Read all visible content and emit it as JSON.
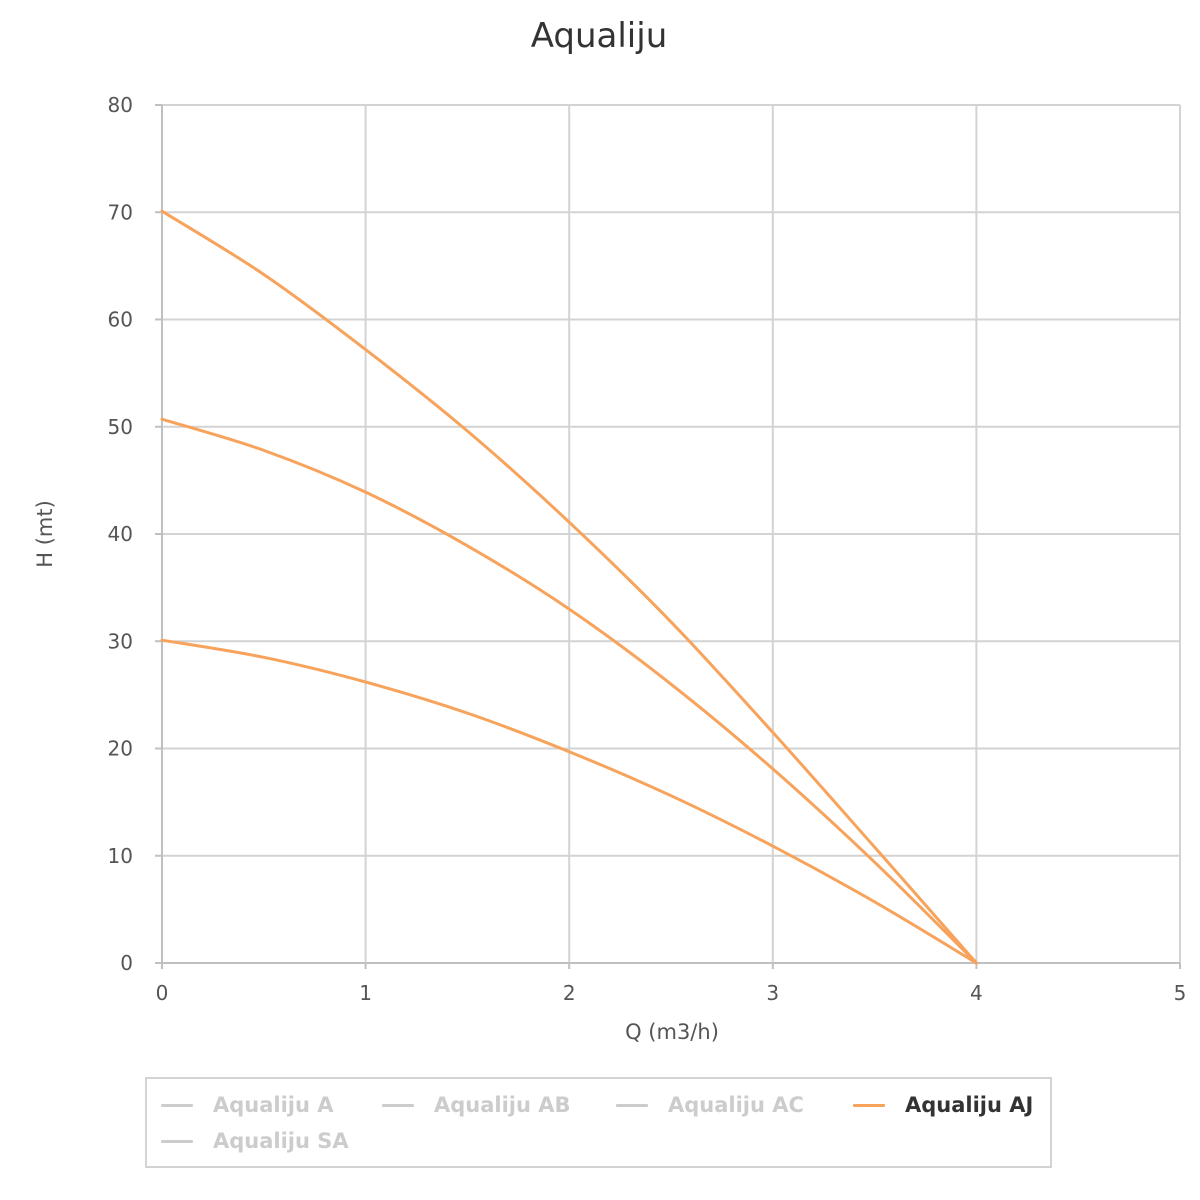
{
  "chart_data": {
    "type": "line",
    "title": "Aqualiju",
    "xlabel": "Q (m3/h)",
    "ylabel": "H (mt)",
    "xlim": [
      0,
      5
    ],
    "ylim": [
      0,
      80
    ],
    "x_ticks": [
      "0",
      "1",
      "2",
      "3",
      "4",
      "5"
    ],
    "y_ticks": [
      "0",
      "10",
      "20",
      "30",
      "40",
      "50",
      "60",
      "70",
      "80"
    ],
    "grid": true,
    "legend_position": "bottom",
    "series": [
      {
        "name": "Aqualiju AJ",
        "color": "#f7a35c",
        "x": [
          0,
          0.5,
          1,
          1.5,
          2,
          2.5,
          3,
          3.5,
          4
        ],
        "y": [
          70.1,
          64.2,
          57.2,
          49.6,
          41.1,
          31.8,
          21.5,
          10.8,
          0
        ]
      },
      {
        "name": "Aqualiju AJ",
        "color": "#f7a35c",
        "x": [
          0,
          0.5,
          1,
          1.5,
          2,
          2.5,
          3,
          3.5,
          4
        ],
        "y": [
          50.7,
          47.8,
          43.9,
          38.9,
          33.0,
          26.0,
          18.1,
          9.4,
          0
        ]
      },
      {
        "name": "Aqualiju AJ",
        "color": "#f7a35c",
        "x": [
          0,
          0.5,
          1,
          1.5,
          2,
          2.5,
          3,
          3.5,
          4
        ],
        "y": [
          30.1,
          28.5,
          26.2,
          23.3,
          19.7,
          15.6,
          10.9,
          5.7,
          0
        ]
      }
    ]
  },
  "legend": {
    "items": [
      {
        "label": "Aqualiju A",
        "color": "#cccccc",
        "active": false
      },
      {
        "label": "Aqualiju AB",
        "color": "#cccccc",
        "active": false
      },
      {
        "label": "Aqualiju AC",
        "color": "#cccccc",
        "active": false
      },
      {
        "label": "Aqualiju AJ",
        "color": "#f7a35c",
        "active": true
      },
      {
        "label": "Aqualiju SA",
        "color": "#cccccc",
        "active": false
      }
    ]
  }
}
